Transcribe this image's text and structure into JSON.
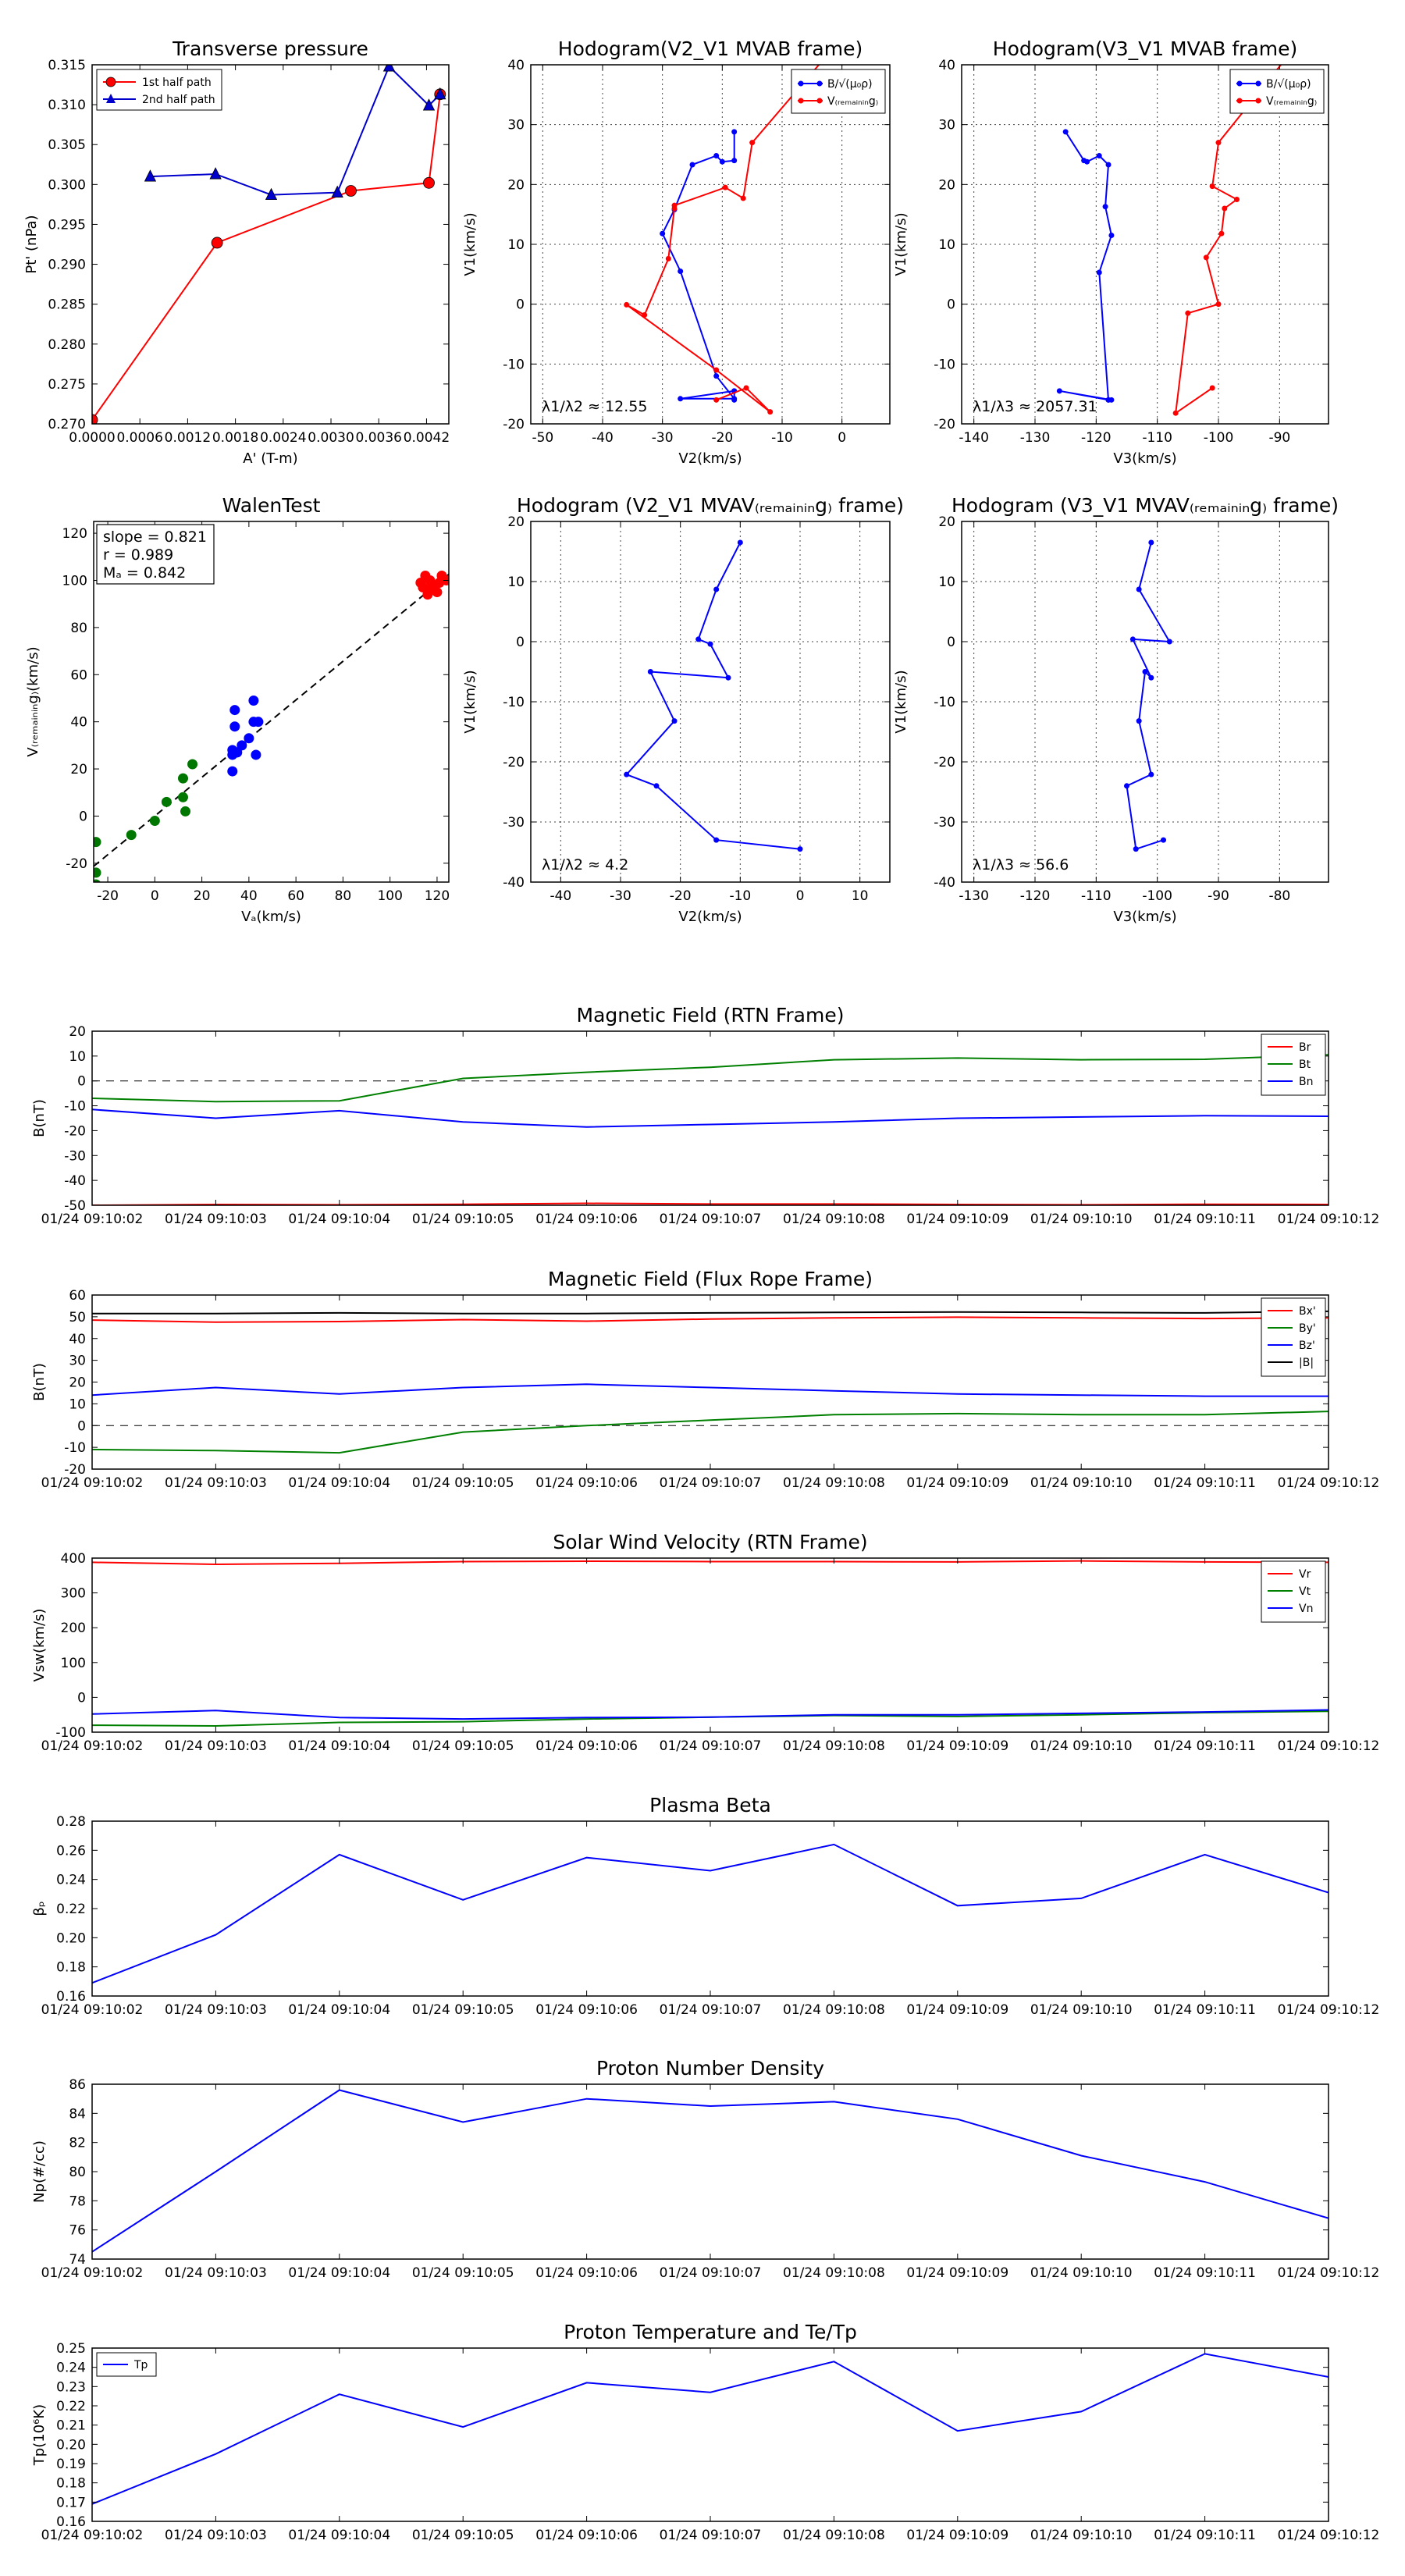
{
  "chart_data": [
    {
      "id": "ptA",
      "type": "line",
      "title": "Transverse pressure",
      "xlabel": "A' (T-m)",
      "ylabel": "Pt' (nPa)",
      "xlim": [
        0,
        0.00448
      ],
      "ylim": [
        0.27,
        0.315
      ],
      "xticks": [
        0,
        0.0006,
        0.0012,
        0.0018,
        0.0024,
        0.003,
        0.0036,
        0.0042
      ],
      "xticklabels": [
        "0.0000",
        "0.0006",
        "0.0012",
        "0.0018",
        "0.0024",
        "0.0030",
        "0.0036",
        "0.0042"
      ],
      "yticks": [
        0.27,
        0.275,
        0.28,
        0.285,
        0.29,
        0.295,
        0.3,
        0.305,
        0.31,
        0.315
      ],
      "yticklabels": [
        "0.270",
        "0.275",
        "0.280",
        "0.285",
        "0.290",
        "0.295",
        "0.300",
        "0.305",
        "0.310",
        "0.315"
      ],
      "grid": false,
      "legend_loc": "top-left",
      "series": [
        {
          "name": "1st half path",
          "color": "#ff0000",
          "marker": "circle",
          "x": [
            0.0,
            0.00157,
            0.00325,
            0.00423,
            0.00437
          ],
          "y": [
            0.2705,
            0.2927,
            0.2992,
            0.3002,
            0.3113
          ]
        },
        {
          "name": "2nd half path",
          "color": "#0000cc",
          "marker": "triangle",
          "x": [
            0.00073,
            0.00155,
            0.00225,
            0.00308,
            0.00373,
            0.00423,
            0.00437
          ],
          "y": [
            0.301,
            0.3013,
            0.2987,
            0.299,
            0.3148,
            0.3099,
            0.3113
          ]
        }
      ]
    },
    {
      "id": "hodoB",
      "type": "line",
      "title": "Hodogram(V2_V1 MVAB frame)",
      "xlabel": "V2(km/s)",
      "ylabel": "V1(km/s)",
      "xlim": [
        -52,
        8
      ],
      "ylim": [
        -20,
        40
      ],
      "xticks": [
        -50,
        -40,
        -30,
        -20,
        -10,
        0
      ],
      "yticks": [
        -20,
        -10,
        0,
        10,
        20,
        30,
        40
      ],
      "grid": true,
      "legend_loc": "top-right",
      "legend_labels": [
        "B/√(μ₀ρ)",
        "V₍ᵣₑₘₐᵢₙᵢₙg₎"
      ],
      "annotation": "λ1/λ2 ≈ 12.55",
      "series": [
        {
          "name": "B",
          "color": "#0000ff",
          "marker": "dot",
          "x": [
            -18,
            -18,
            -20,
            -21,
            -25,
            -28,
            -30,
            -27,
            -21,
            -18,
            -27,
            -18,
            -18,
            -18
          ],
          "y": [
            28.8,
            24,
            23.8,
            24.8,
            23.3,
            15.8,
            11.8,
            5.5,
            -12,
            -15.8,
            -15.8,
            -14.5,
            -16,
            -14.5
          ]
        },
        {
          "name": "V",
          "color": "#ff0000",
          "marker": "dot",
          "x": [
            -3,
            -15,
            -16.5,
            -19.5,
            -28,
            -28,
            -29,
            -33,
            -36,
            -21,
            -12,
            -16,
            -21
          ],
          "y": [
            41,
            27,
            17.7,
            19.5,
            16.5,
            16,
            7.6,
            -1.8,
            -0.1,
            -11,
            -18,
            -14,
            -16
          ]
        }
      ]
    },
    {
      "id": "hodoB2",
      "type": "line",
      "title": "Hodogram(V3_V1 MVAB frame)",
      "xlabel": "V3(km/s)",
      "ylabel": "V1(km/s)",
      "xlim": [
        -142,
        -82
      ],
      "ylim": [
        -20,
        40
      ],
      "xticks": [
        -140,
        -130,
        -120,
        -110,
        -100,
        -90
      ],
      "yticks": [
        -20,
        -10,
        0,
        10,
        20,
        30,
        40
      ],
      "grid": true,
      "legend_loc": "top-right",
      "legend_labels": [
        "B/√(μ₀ρ)",
        "V₍ᵣₑₘₐᵢₙᵢₙg₎"
      ],
      "annotation": "λ1/λ3 ≈ 2057.31",
      "series": [
        {
          "name": "B",
          "color": "#0000ff",
          "marker": "dot",
          "x": [
            -125,
            -122,
            -121.5,
            -119.5,
            -118,
            -118.5,
            -117.5,
            -119.5,
            -118,
            -117.5,
            -126,
            -118
          ],
          "y": [
            28.8,
            24,
            23.8,
            24.8,
            23.3,
            16.3,
            11.5,
            5.3,
            -16,
            -16,
            -14.5,
            -16
          ]
        },
        {
          "name": "V",
          "color": "#ff0000",
          "marker": "dot",
          "x": [
            -89,
            -100,
            -101,
            -97,
            -99,
            -99.5,
            -102,
            -100,
            -105,
            -107,
            -101
          ],
          "y": [
            41,
            27,
            19.7,
            17.5,
            16,
            11.8,
            7.8,
            0,
            -1.5,
            -18.2,
            -14
          ]
        }
      ]
    },
    {
      "id": "walen",
      "type": "scatter",
      "title": "WalenTest",
      "xlabel": "Vₐ(km/s)",
      "ylabel": "V₍ᵣₑₘₐᵢₙᵢₙg₎(km/s)",
      "xlim": [
        -26,
        125
      ],
      "ylim": [
        -28,
        125
      ],
      "xticks": [
        -20,
        0,
        20,
        40,
        60,
        80,
        100,
        120
      ],
      "yticks": [
        -20,
        0,
        20,
        40,
        60,
        80,
        100,
        120
      ],
      "grid": false,
      "stats": [
        "slope = 0.821",
        "r = 0.989",
        "Mₐ = 0.842"
      ],
      "fit_line": {
        "x": [
          -26,
          125
        ],
        "y": [
          -21.3,
          102.6
        ]
      },
      "series": [
        {
          "name": "green",
          "color": "#007700",
          "x": [
            -25,
            -25,
            -25,
            -10,
            0,
            5,
            12,
            12,
            13,
            16
          ],
          "y": [
            -11,
            -24,
            -29,
            -8,
            -2,
            6,
            16,
            8,
            2,
            22
          ]
        },
        {
          "name": "blue",
          "color": "#0000ff",
          "x": [
            33,
            33,
            34,
            34,
            35,
            37,
            40,
            42,
            42,
            43,
            44,
            33
          ],
          "y": [
            19,
            26,
            38,
            45,
            27,
            30,
            33,
            49,
            40,
            26,
            40,
            28
          ]
        },
        {
          "name": "red",
          "color": "#ff0000",
          "x": [
            113,
            114,
            115,
            116,
            117,
            118,
            119,
            120,
            121,
            122,
            124,
            116
          ],
          "y": [
            99,
            97,
            102,
            96,
            100,
            98,
            97,
            95,
            99,
            102,
            100,
            94
          ]
        }
      ]
    },
    {
      "id": "hodoV",
      "type": "line",
      "title": "Hodogram (V2_V1 MVAV₍ᵣₑₘₐᵢₙᵢₙg₎ frame)",
      "xlabel": "V2(km/s)",
      "ylabel": "V1(km/s)",
      "xlim": [
        -45,
        15
      ],
      "ylim": [
        -40,
        20
      ],
      "xticks": [
        -40,
        -30,
        -20,
        -10,
        0,
        10
      ],
      "yticks": [
        -40,
        -30,
        -20,
        -10,
        0,
        10,
        20
      ],
      "grid": true,
      "annotation": "λ1/λ2 ≈ 4.2",
      "series": [
        {
          "name": "V",
          "color": "#0000ff",
          "marker": "dot",
          "x": [
            -10,
            -14,
            -17,
            -15,
            -12,
            -25,
            -21,
            -29,
            -24,
            -14,
            0
          ],
          "y": [
            16.5,
            8.7,
            0.4,
            -0.4,
            -6,
            -5,
            -13.2,
            -22.1,
            -24,
            -33,
            -34.5
          ]
        }
      ]
    },
    {
      "id": "hodoV2",
      "type": "line",
      "title": "Hodogram (V3_V1 MVAV₍ᵣₑₘₐᵢₙᵢₙg₎ frame)",
      "xlabel": "V3(km/s)",
      "ylabel": "V1(km/s)",
      "xlim": [
        -132,
        -72
      ],
      "ylim": [
        -40,
        20
      ],
      "xticks": [
        -130,
        -120,
        -110,
        -100,
        -90,
        -80
      ],
      "yticks": [
        -40,
        -30,
        -20,
        -10,
        0,
        10,
        20
      ],
      "grid": true,
      "annotation": "λ1/λ3 ≈ 56.6",
      "series": [
        {
          "name": "V",
          "color": "#0000ff",
          "marker": "dot",
          "x": [
            -101,
            -103,
            -98,
            -104,
            -101,
            -102,
            -103,
            -101,
            -105,
            -103.5,
            -99
          ],
          "y": [
            16.5,
            8.7,
            0,
            0.4,
            -6,
            -5,
            -13.2,
            -22.1,
            -24,
            -34.5,
            -33
          ]
        }
      ]
    },
    {
      "id": "magrtn",
      "type": "line",
      "title": "Magnetic Field (RTN Frame)",
      "xlabel": "",
      "ylabel": "B(nT)",
      "x": [
        "01/24 09:10:02",
        "01/24 09:10:03",
        "01/24 09:10:04",
        "01/24 09:10:05",
        "01/24 09:10:06",
        "01/24 09:10:07",
        "01/24 09:10:08",
        "01/24 09:10:09",
        "01/24 09:10:10",
        "01/24 09:10:11",
        "01/24 09:10:12"
      ],
      "ylim": [
        -50,
        20
      ],
      "yticks": [
        -50,
        -40,
        -30,
        -20,
        -10,
        0,
        10,
        20
      ],
      "zero_line": true,
      "legend_loc": "top-right",
      "series": [
        {
          "name": "Br",
          "color": "#ff0000",
          "values": [
            -50,
            -49.7,
            -49.8,
            -49.6,
            -49.2,
            -49.5,
            -49.5,
            -49.7,
            -49.8,
            -49.6,
            -49.7
          ]
        },
        {
          "name": "Bt",
          "color": "#008000",
          "values": [
            -7,
            -8.3,
            -8,
            1,
            3.5,
            5.5,
            8.5,
            9.2,
            8.5,
            8.7,
            10.5
          ]
        },
        {
          "name": "Bn",
          "color": "#0000ff",
          "values": [
            -11.5,
            -15,
            -12,
            -16.5,
            -18.5,
            -17.5,
            -16.5,
            -15,
            -14.5,
            -14,
            -14.2
          ]
        }
      ]
    },
    {
      "id": "magfr",
      "type": "line",
      "title": "Magnetic Field (Flux Rope Frame)",
      "xlabel": "",
      "ylabel": "B(nT)",
      "x": [
        "01/24 09:10:02",
        "01/24 09:10:03",
        "01/24 09:10:04",
        "01/24 09:10:05",
        "01/24 09:10:06",
        "01/24 09:10:07",
        "01/24 09:10:08",
        "01/24 09:10:09",
        "01/24 09:10:10",
        "01/24 09:10:11",
        "01/24 09:10:12"
      ],
      "ylim": [
        -20,
        60
      ],
      "yticks": [
        -20,
        -10,
        0,
        10,
        20,
        30,
        40,
        50,
        60
      ],
      "zero_line": true,
      "legend_loc": "top-right",
      "series": [
        {
          "name": "Bx'",
          "color": "#ff0000",
          "values": [
            48.5,
            47.5,
            47.8,
            48.7,
            48,
            49,
            49.5,
            49.8,
            49.5,
            49.2,
            49.5
          ]
        },
        {
          "name": "By'",
          "color": "#008000",
          "values": [
            -11,
            -11.5,
            -12.5,
            -3,
            0,
            2.5,
            5,
            5.5,
            5,
            5,
            6.5
          ]
        },
        {
          "name": "Bz'",
          "color": "#0000ff",
          "values": [
            14,
            17.5,
            14.5,
            17.5,
            19,
            17.5,
            16,
            14.5,
            14,
            13.5,
            13.5
          ]
        },
        {
          "name": "|B|",
          "color": "#000000",
          "values": [
            51.5,
            51.5,
            51.8,
            51.5,
            51.5,
            51.8,
            52,
            52.2,
            52,
            51.8,
            52.5
          ]
        }
      ]
    },
    {
      "id": "swv",
      "type": "line",
      "title": "Solar Wind Velocity (RTN Frame)",
      "xlabel": "",
      "ylabel": "Vsw(km/s)",
      "x": [
        "01/24 09:10:02",
        "01/24 09:10:03",
        "01/24 09:10:04",
        "01/24 09:10:05",
        "01/24 09:10:06",
        "01/24 09:10:07",
        "01/24 09:10:08",
        "01/24 09:10:09",
        "01/24 09:10:10",
        "01/24 09:10:11",
        "01/24 09:10:12"
      ],
      "ylim": [
        -100,
        400
      ],
      "yticks": [
        -100,
        0,
        100,
        200,
        300,
        400
      ],
      "legend_loc": "top-right",
      "series": [
        {
          "name": "Vr",
          "color": "#ff0000",
          "values": [
            388,
            382,
            385,
            390,
            391,
            390,
            390,
            389,
            392,
            389,
            388
          ]
        },
        {
          "name": "Vt",
          "color": "#008000",
          "values": [
            -80,
            -82,
            -72,
            -70,
            -62,
            -57,
            -52,
            -55,
            -50,
            -44,
            -40
          ]
        },
        {
          "name": "Vn",
          "color": "#0000ff",
          "values": [
            -48,
            -38,
            -58,
            -62,
            -58,
            -57,
            -50,
            -50,
            -46,
            -42,
            -36
          ]
        }
      ]
    },
    {
      "id": "beta",
      "type": "line",
      "title": "Plasma Beta",
      "xlabel": "",
      "ylabel": "βₚ",
      "x": [
        "01/24 09:10:02",
        "01/24 09:10:03",
        "01/24 09:10:04",
        "01/24 09:10:05",
        "01/24 09:10:06",
        "01/24 09:10:07",
        "01/24 09:10:08",
        "01/24 09:10:09",
        "01/24 09:10:10",
        "01/24 09:10:11",
        "01/24 09:10:12"
      ],
      "ylim": [
        0.16,
        0.28
      ],
      "yticks": [
        0.16,
        0.18,
        0.2,
        0.22,
        0.24,
        0.26,
        0.28
      ],
      "series": [
        {
          "name": "beta",
          "color": "#0000ff",
          "values": [
            0.169,
            0.202,
            0.257,
            0.226,
            0.255,
            0.246,
            0.264,
            0.222,
            0.227,
            0.257,
            0.231
          ]
        }
      ]
    },
    {
      "id": "np",
      "type": "line",
      "title": "Proton Number Density",
      "xlabel": "",
      "ylabel": "Np(#/cc)",
      "x": [
        "01/24 09:10:02",
        "01/24 09:10:03",
        "01/24 09:10:04",
        "01/24 09:10:05",
        "01/24 09:10:06",
        "01/24 09:10:07",
        "01/24 09:10:08",
        "01/24 09:10:09",
        "01/24 09:10:10",
        "01/24 09:10:11",
        "01/24 09:10:12"
      ],
      "ylim": [
        74,
        86
      ],
      "yticks": [
        74,
        76,
        78,
        80,
        82,
        84,
        86
      ],
      "series": [
        {
          "name": "Np",
          "color": "#0000ff",
          "values": [
            74.5,
            80,
            85.6,
            83.4,
            85,
            84.5,
            84.8,
            83.6,
            81.1,
            79.3,
            76.8
          ]
        }
      ]
    },
    {
      "id": "tp",
      "type": "line",
      "title": "Proton Temperature and Te/Tp",
      "xlabel": "",
      "ylabel": "Tp(10⁶K)",
      "x": [
        "01/24 09:10:02",
        "01/24 09:10:03",
        "01/24 09:10:04",
        "01/24 09:10:05",
        "01/24 09:10:06",
        "01/24 09:10:07",
        "01/24 09:10:08",
        "01/24 09:10:09",
        "01/24 09:10:10",
        "01/24 09:10:11",
        "01/24 09:10:12"
      ],
      "ylim": [
        0.16,
        0.25
      ],
      "yticks": [
        0.16,
        0.17,
        0.18,
        0.19,
        0.2,
        0.21,
        0.22,
        0.23,
        0.24,
        0.25
      ],
      "legend_loc": "top-left",
      "series": [
        {
          "name": "Tp",
          "color": "#0000ff",
          "values": [
            0.169,
            0.195,
            0.226,
            0.209,
            0.232,
            0.227,
            0.243,
            0.207,
            0.217,
            0.247,
            0.235
          ]
        }
      ]
    }
  ]
}
